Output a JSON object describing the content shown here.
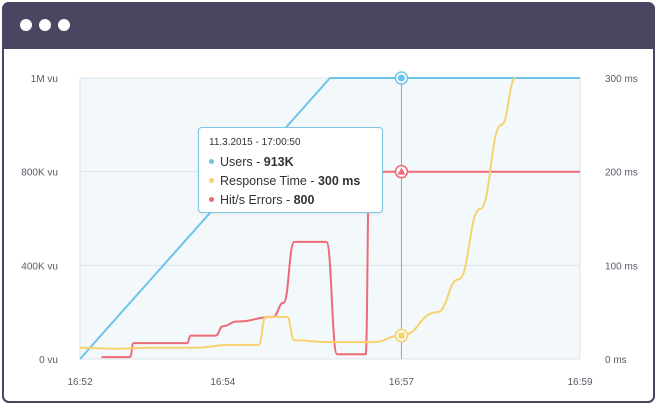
{
  "window": {
    "titlebar_color": "#4a4560",
    "controls": [
      "window-dot-icon",
      "window-dot-icon",
      "window-dot-icon"
    ]
  },
  "chart_data": {
    "type": "line",
    "x": [
      "16:52",
      "16:54",
      "16:57",
      "16:59"
    ],
    "xlim_minutes": [
      0,
      7
    ],
    "left_axis": {
      "ticks": [
        "0 vu",
        "400K vu",
        "800K vu",
        "1M vu"
      ],
      "tick_values": [
        0,
        400000,
        800000,
        1000000
      ]
    },
    "right_axis": {
      "ticks": [
        "0 ms",
        "100 ms",
        "200 ms",
        "300 ms"
      ],
      "tick_values": [
        0,
        100,
        200,
        300
      ]
    },
    "grid": true,
    "series": [
      {
        "name": "Users",
        "color": "#6cc5e8",
        "axis": "left",
        "points": [
          [
            0,
            0
          ],
          [
            3.5,
            1000000
          ],
          [
            7,
            1000000
          ]
        ]
      },
      {
        "name": "Hit/s Errors",
        "color": "#ee6a76",
        "axis": "right",
        "points": [
          [
            0.3,
            2
          ],
          [
            0.7,
            2
          ],
          [
            0.75,
            17
          ],
          [
            1.5,
            17
          ],
          [
            1.55,
            25
          ],
          [
            1.9,
            25
          ],
          [
            2.0,
            35
          ],
          [
            2.2,
            40
          ],
          [
            2.7,
            45
          ],
          [
            2.85,
            60
          ],
          [
            3.0,
            125
          ],
          [
            3.45,
            125
          ],
          [
            3.6,
            5
          ],
          [
            4.0,
            5
          ],
          [
            4.05,
            200
          ],
          [
            4.5,
            200
          ],
          [
            5.5,
            200
          ],
          [
            7,
            200
          ]
        ]
      },
      {
        "name": "Response Time",
        "color": "#f6d26c",
        "axis": "right",
        "points": [
          [
            0,
            12
          ],
          [
            0.5,
            11
          ],
          [
            1.0,
            12
          ],
          [
            1.6,
            12
          ],
          [
            2.1,
            15
          ],
          [
            2.5,
            15
          ],
          [
            2.6,
            45
          ],
          [
            2.9,
            45
          ],
          [
            3.0,
            20
          ],
          [
            3.5,
            18
          ],
          [
            4.1,
            18
          ],
          [
            4.5,
            25
          ],
          [
            5.0,
            50
          ],
          [
            5.3,
            85
          ],
          [
            5.6,
            160
          ],
          [
            5.9,
            250
          ],
          [
            6.1,
            300
          ]
        ]
      }
    ],
    "crosshair": {
      "x_minute": 4.5,
      "label_x": "16:57"
    },
    "tooltip": {
      "date": "11.3.2015 - 17:00:50",
      "rows": [
        {
          "label": "Users - ",
          "value": "913K",
          "color": "#6cc5e8"
        },
        {
          "label": "Response Time - ",
          "value": "300 ms",
          "color": "#f6d26c"
        },
        {
          "label": "Hit/s Errors - ",
          "value": "800",
          "color": "#ee6a76"
        }
      ]
    }
  }
}
